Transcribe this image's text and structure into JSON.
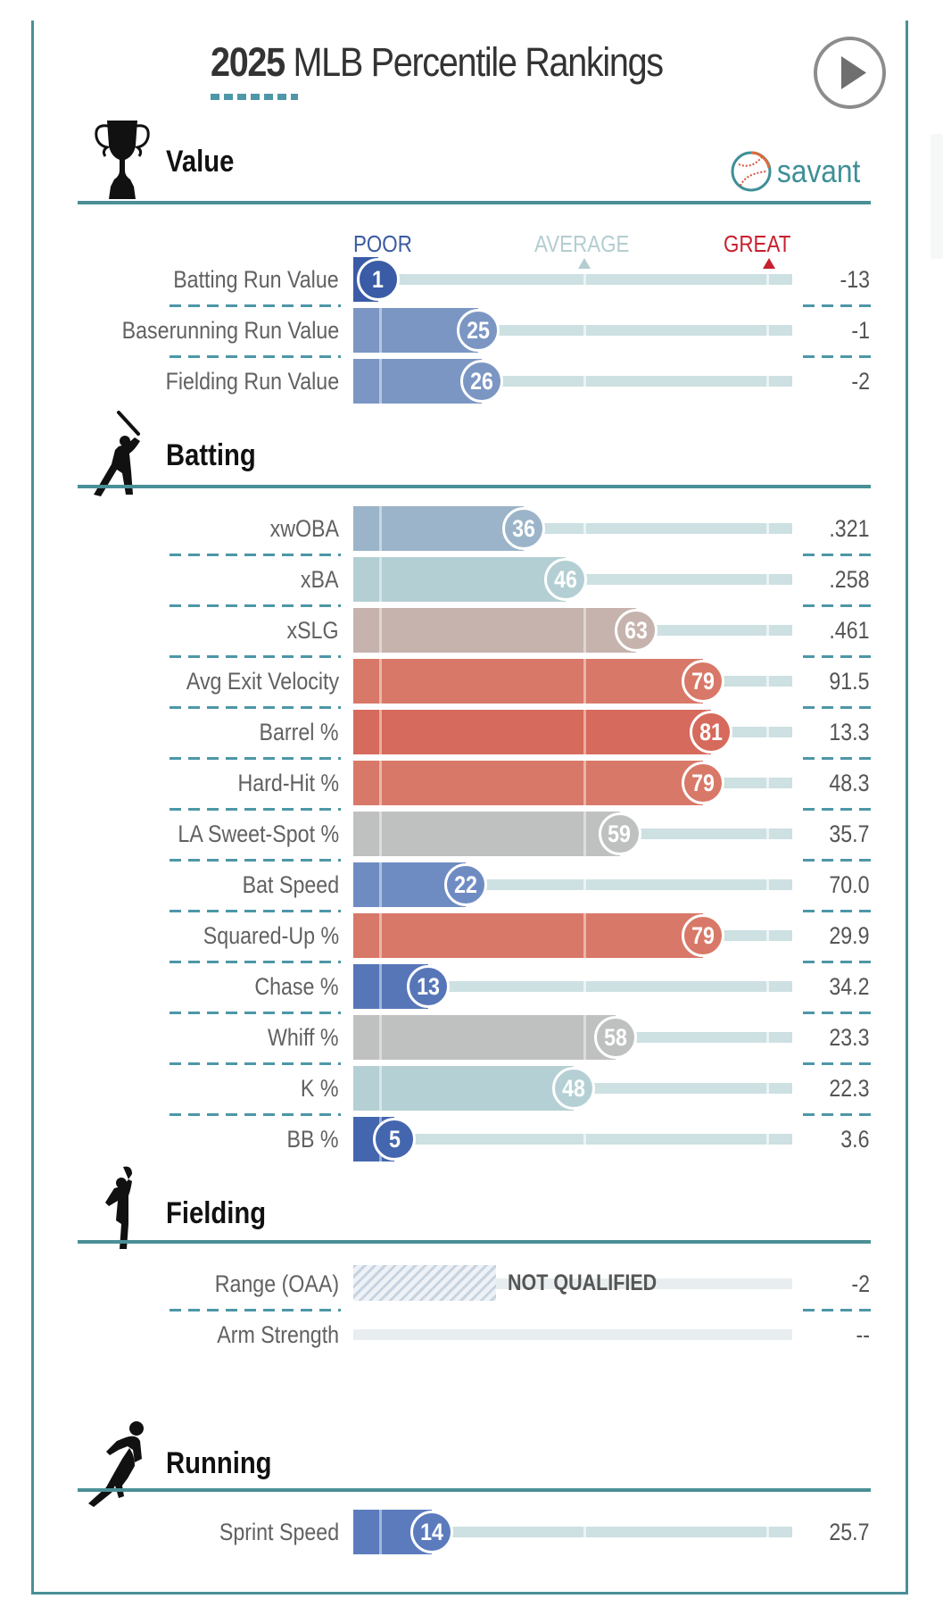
{
  "header": {
    "title_year": "2025",
    "title_rest": " MLB Percentile Rankings",
    "play_button_icon": "play-icon",
    "logo_text": "savant"
  },
  "scale": {
    "poor": "POOR",
    "average": "AVERAGE",
    "great": "GREAT",
    "poor_color": "#3a5aa0",
    "average_color": "#b3cdd1",
    "great_color": "#c8202f"
  },
  "sections": {
    "value": "Value",
    "batting": "Batting",
    "fielding": "Fielding",
    "running": "Running"
  },
  "not_qualified": "NOT QUALIFIED",
  "chart_data": {
    "type": "bar",
    "title": "2025 MLB Percentile Rankings",
    "xlim": [
      0,
      100
    ],
    "scale_labels": [
      "POOR",
      "AVERAGE",
      "GREAT"
    ],
    "groups": [
      {
        "name": "Value",
        "rows": [
          {
            "label": "Batting Run Value",
            "percentile": 1,
            "value": "-13",
            "color": "#3a5ba6"
          },
          {
            "label": "Baserunning Run Value",
            "percentile": 25,
            "value": "-1",
            "color": "#7b96c3"
          },
          {
            "label": "Fielding Run Value",
            "percentile": 26,
            "value": "-2",
            "color": "#7b96c3"
          }
        ]
      },
      {
        "name": "Batting",
        "rows": [
          {
            "label": "xwOBA",
            "percentile": 36,
            "value": ".321",
            "color": "#9bb4c9"
          },
          {
            "label": "xBA",
            "percentile": 46,
            "value": ".258",
            "color": "#b3cfd3"
          },
          {
            "label": "xSLG",
            "percentile": 63,
            "value": ".461",
            "color": "#c6b3ad"
          },
          {
            "label": "Avg Exit Velocity",
            "percentile": 79,
            "value": "91.5",
            "color": "#d87868"
          },
          {
            "label": "Barrel %",
            "percentile": 81,
            "value": "13.3",
            "color": "#d66a5c"
          },
          {
            "label": "Hard-Hit %",
            "percentile": 79,
            "value": "48.3",
            "color": "#d87868"
          },
          {
            "label": "LA Sweet-Spot %",
            "percentile": 59,
            "value": "35.7",
            "color": "#bfc1c0"
          },
          {
            "label": "Bat Speed",
            "percentile": 22,
            "value": "70.0",
            "color": "#6f8cc2"
          },
          {
            "label": "Squared-Up %",
            "percentile": 79,
            "value": "29.9",
            "color": "#d87868"
          },
          {
            "label": "Chase %",
            "percentile": 13,
            "value": "34.2",
            "color": "#5676b8"
          },
          {
            "label": "Whiff %",
            "percentile": 58,
            "value": "23.3",
            "color": "#bec1c0"
          },
          {
            "label": "K %",
            "percentile": 48,
            "value": "22.3",
            "color": "#b5d0d4"
          },
          {
            "label": "BB %",
            "percentile": 5,
            "value": "3.6",
            "color": "#4466ae"
          }
        ]
      },
      {
        "name": "Fielding",
        "rows": [
          {
            "label": "Range (OAA)",
            "percentile": null,
            "value": "-2",
            "status": "NOT QUALIFIED"
          },
          {
            "label": "Arm Strength",
            "percentile": null,
            "value": "--"
          }
        ]
      },
      {
        "name": "Running",
        "rows": [
          {
            "label": "Sprint Speed",
            "percentile": 14,
            "value": "25.7",
            "color": "#5b7bbd"
          }
        ]
      }
    ]
  }
}
